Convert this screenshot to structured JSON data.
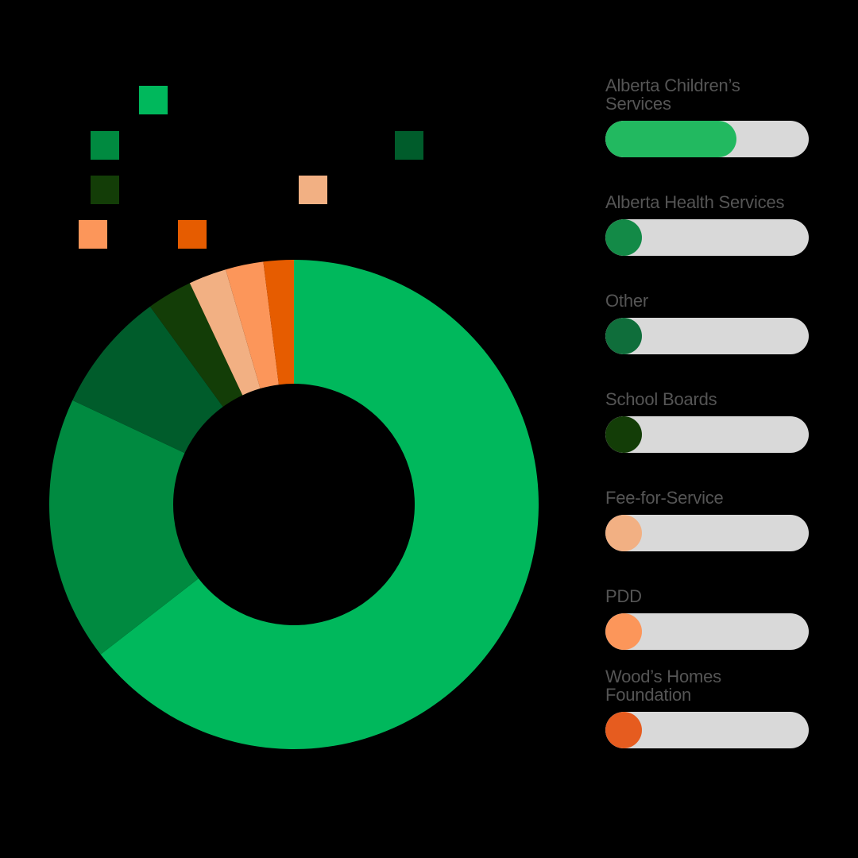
{
  "chart_data": {
    "type": "pie",
    "donut": true,
    "categories": [
      "Alberta Children’s Services",
      "Alberta Health Services",
      "Other",
      "School Boards",
      "Fee-for-Service",
      "PDD",
      "Wood’s Homes Foundation"
    ],
    "values": [
      64.5,
      17.5,
      8.0,
      3.0,
      2.5,
      2.5,
      2.0
    ],
    "colors": [
      "#00b85c",
      "#008a40",
      "#005c2b",
      "#133d07",
      "#f2b083",
      "#fc965a",
      "#e65c00"
    ],
    "bar_colors": [
      "#22b960",
      "#138a47",
      "#0f6e3b",
      "#133d07",
      "#f2b083",
      "#fc965a",
      "#e65c1f"
    ],
    "bar_track_color": "#d9d9d9",
    "legend_markers": true
  }
}
